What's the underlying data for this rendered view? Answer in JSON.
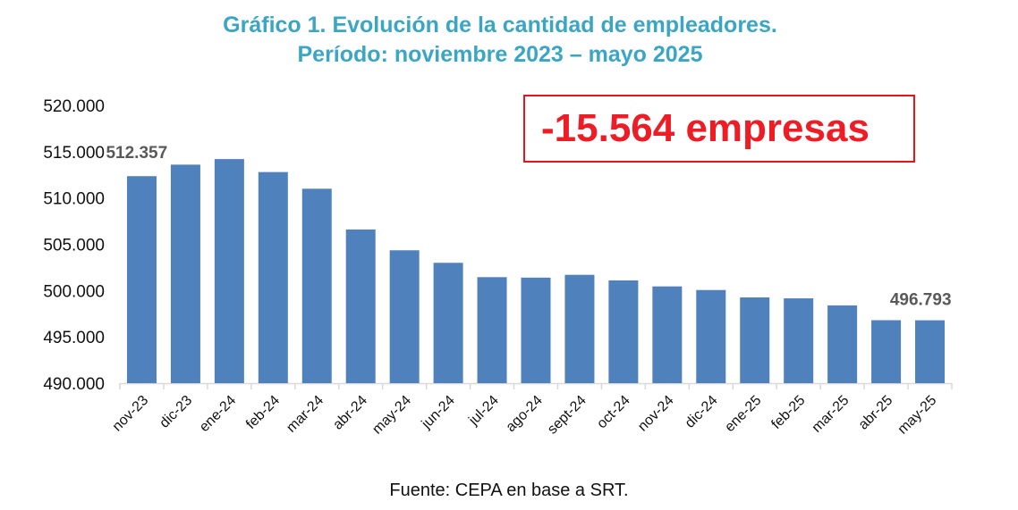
{
  "chart_data": {
    "type": "bar",
    "title": "Gráfico 1. Evolución de la cantidad de empleadores.",
    "subtitle": "Período: noviembre 2023 – mayo 2025",
    "xlabel": "",
    "ylabel": "",
    "ylim": [
      490000,
      520000
    ],
    "yticks": [
      "490.000",
      "495.000",
      "500.000",
      "505.000",
      "510.000",
      "515.000",
      "520.000"
    ],
    "grid": false,
    "categories": [
      "nov-23",
      "dic-23",
      "ene-24",
      "feb-24",
      "mar-24",
      "abr-24",
      "may-24",
      "jun-24",
      "jul-24",
      "ago-24",
      "sept-24",
      "oct-24",
      "nov-24",
      "dic-24",
      "ene-25",
      "feb-25",
      "mar-25",
      "abr-25",
      "may-25"
    ],
    "values": [
      512357,
      513600,
      514200,
      512800,
      511000,
      506600,
      504350,
      503000,
      501450,
      501400,
      501700,
      501100,
      500450,
      500060,
      499260,
      499160,
      498400,
      496800,
      496793
    ],
    "data_labels": [
      {
        "category": "nov-23",
        "text": "512.357"
      },
      {
        "category": "may-25",
        "text": "496.793"
      }
    ],
    "annotation": "-15.564 empresas",
    "bar_color": "#4f81bd",
    "source": "Fuente: CEPA en base a SRT."
  }
}
